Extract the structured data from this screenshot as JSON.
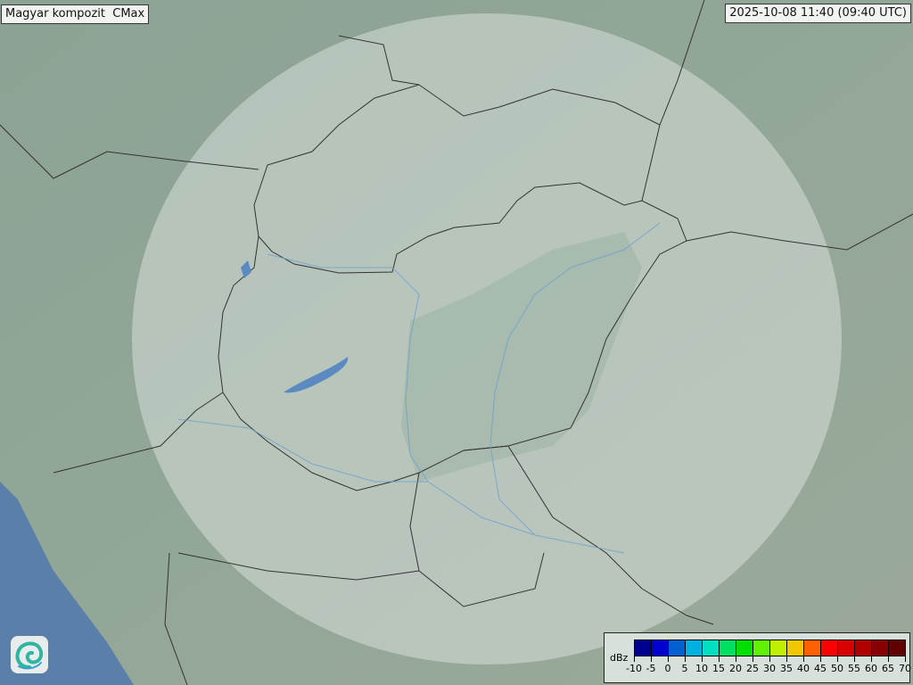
{
  "header": {
    "title": "Magyar kompozit  CMax",
    "timestamp": "2025-10-08 11:40 (09:40 UTC)"
  },
  "legend": {
    "unit": "dBz",
    "ticks": [
      "-10",
      "-5",
      "0",
      "5",
      "10",
      "15",
      "20",
      "25",
      "30",
      "35",
      "40",
      "45",
      "50",
      "55",
      "60",
      "65",
      "70"
    ],
    "colors": [
      "#000090",
      "#0000d0",
      "#0060d0",
      "#00b0e0",
      "#00e0c0",
      "#00e060",
      "#00e000",
      "#60f000",
      "#c0f000",
      "#f0c800",
      "#ff6000",
      "#ff0000",
      "#d80000",
      "#b00000",
      "#880000",
      "#600000"
    ]
  },
  "map": {
    "radar_coverage_color": "#e4ece6",
    "border_color": "#333333",
    "water_color": "#5a7fa8",
    "river_color": "#6f9fd0"
  },
  "logo": {
    "icon": "swirl-logo-icon"
  }
}
